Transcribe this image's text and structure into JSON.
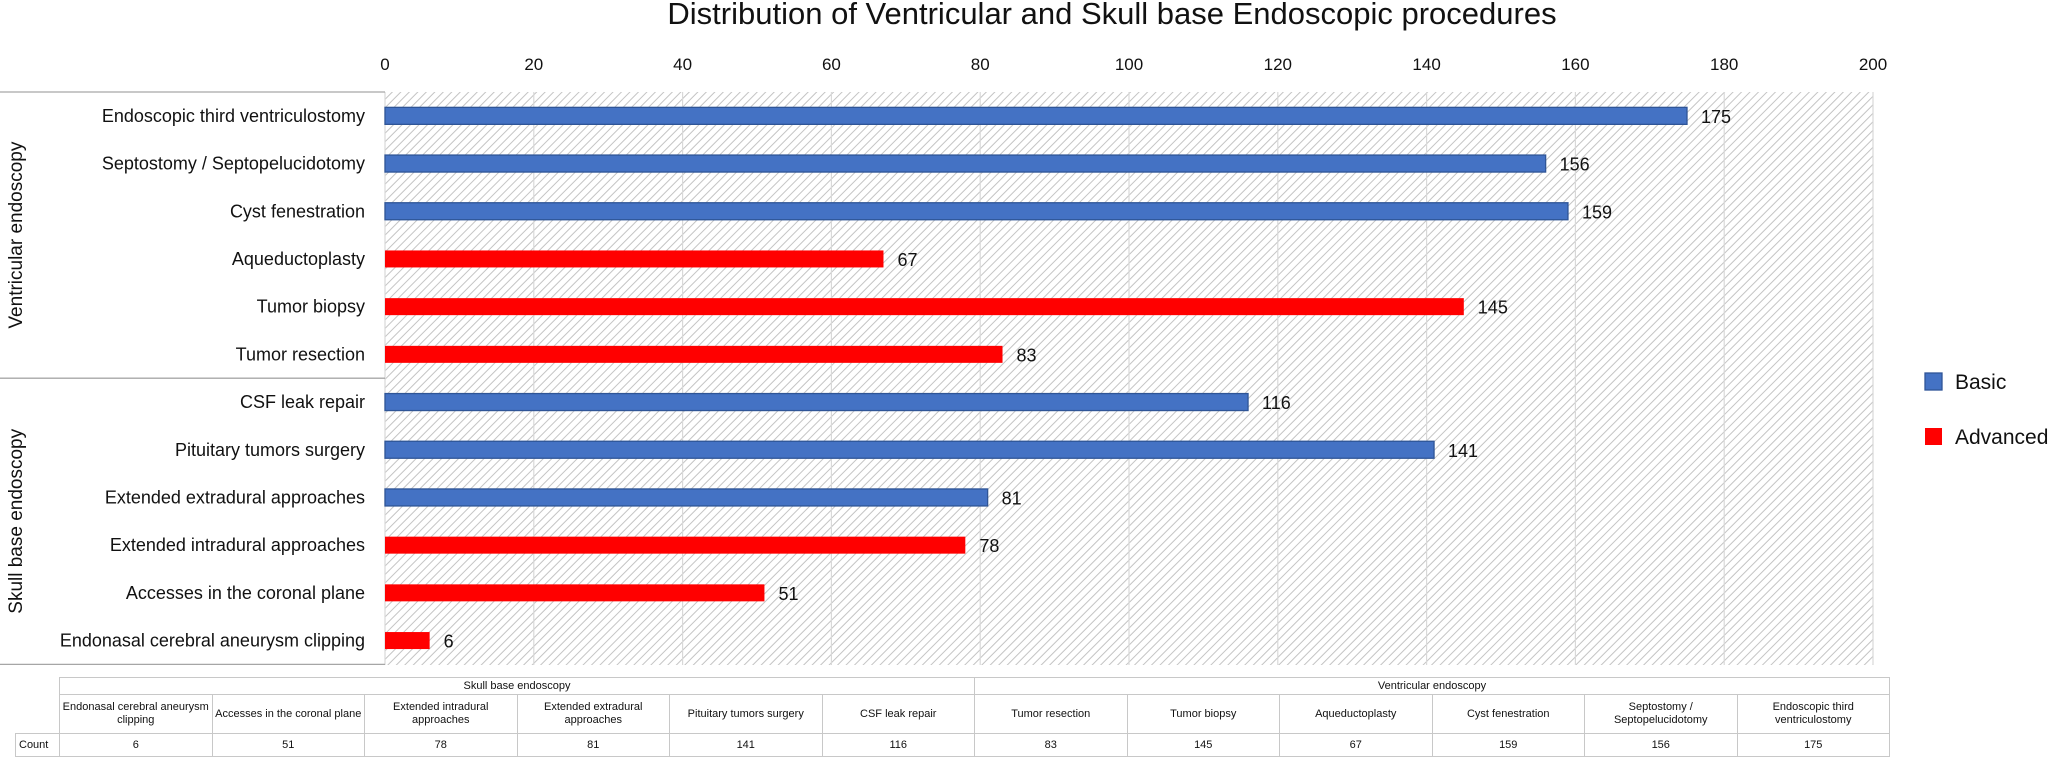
{
  "chart_data": {
    "type": "bar",
    "orientation": "horizontal",
    "title": "Distribution of Ventricular and Skull base Endoscopic procedures",
    "xlim": [
      0,
      200
    ],
    "xticks": [
      0,
      20,
      40,
      60,
      80,
      100,
      120,
      140,
      160,
      180,
      200
    ],
    "grid": true,
    "legend_position": "right",
    "legend": [
      {
        "name": "Basic",
        "color": "#4472C4"
      },
      {
        "name": "Advanced",
        "color": "#FF0000"
      }
    ],
    "groups": [
      {
        "name": "Ventricular endoscopy",
        "bars": [
          {
            "label": "Endoscopic third ventriculostomy",
            "value": 175,
            "level": "Basic"
          },
          {
            "label": "Septostomy / Septopelucidotomy",
            "value": 156,
            "level": "Basic"
          },
          {
            "label": "Cyst fenestration",
            "value": 159,
            "level": "Basic"
          },
          {
            "label": "Aqueductoplasty",
            "value": 67,
            "level": "Advanced"
          },
          {
            "label": "Tumor biopsy",
            "value": 145,
            "level": "Advanced"
          },
          {
            "label": "Tumor resection",
            "value": 83,
            "level": "Advanced"
          }
        ]
      },
      {
        "name": "Skull base endoscopy",
        "bars": [
          {
            "label": "CSF leak repair",
            "value": 116,
            "level": "Basic"
          },
          {
            "label": "Pituitary tumors surgery",
            "value": 141,
            "level": "Basic"
          },
          {
            "label": "Extended extradural approaches",
            "value": 81,
            "level": "Basic"
          },
          {
            "label": "Extended intradural approaches",
            "value": 78,
            "level": "Advanced"
          },
          {
            "label": "Accesses in the coronal plane",
            "value": 51,
            "level": "Advanced"
          },
          {
            "label": "Endonasal cerebral aneurysm clipping",
            "value": 6,
            "level": "Advanced"
          }
        ]
      }
    ]
  },
  "data_table": {
    "row_label": "Count",
    "groups": [
      {
        "name": "Skull base endoscopy",
        "columns": [
          {
            "name": "Endonasal cerebral aneurysm clipping",
            "count": "6"
          },
          {
            "name": "Accesses in the coronal plane",
            "count": "51"
          },
          {
            "name": "Extended intradural approaches",
            "count": "78"
          },
          {
            "name": "Extended extradural approaches",
            "count": "81"
          },
          {
            "name": "Pituitary tumors surgery",
            "count": "141"
          },
          {
            "name": "CSF leak repair",
            "count": "116"
          }
        ]
      },
      {
        "name": "Ventricular endoscopy",
        "columns": [
          {
            "name": "Tumor resection",
            "count": "83"
          },
          {
            "name": "Tumor biopsy",
            "count": "145"
          },
          {
            "name": "Aqueductoplasty",
            "count": "67"
          },
          {
            "name": "Cyst fenestration",
            "count": "159"
          },
          {
            "name": "Septostomy / Septopelucidotomy",
            "count": "156"
          },
          {
            "name": "Endoscopic third ventriculostomy",
            "count": "175"
          }
        ]
      }
    ]
  }
}
